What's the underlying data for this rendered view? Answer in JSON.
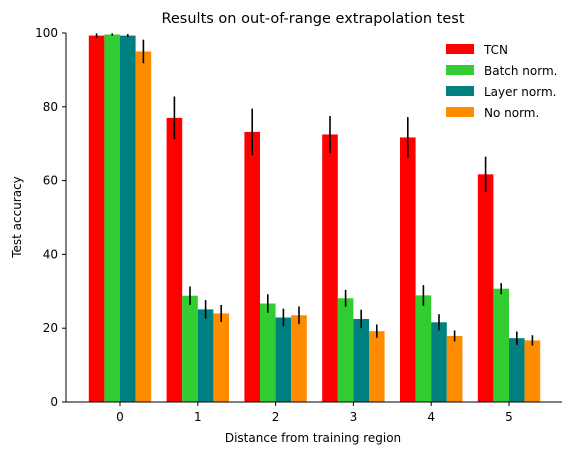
{
  "chart_data": {
    "type": "bar",
    "title": "Results on out-of-range extrapolation test",
    "xlabel": "Distance from training region",
    "ylabel": "Test accuracy",
    "categories": [
      "0",
      "1",
      "2",
      "3",
      "4",
      "5"
    ],
    "ylim": [
      0,
      100
    ],
    "yticks": [
      0,
      20,
      40,
      60,
      80,
      100
    ],
    "grid": false,
    "legend_position": "top-right",
    "series": [
      {
        "name": "TCN",
        "color": "#ff0000",
        "values": [
          99.3,
          77.0,
          73.2,
          72.5,
          71.7,
          61.7
        ],
        "errors": [
          0.6,
          5.8,
          6.3,
          5.0,
          5.5,
          4.8
        ]
      },
      {
        "name": "Batch norm.",
        "color": "#32cd32",
        "values": [
          99.6,
          28.8,
          26.7,
          28.1,
          28.9,
          30.7
        ],
        "errors": [
          0.3,
          2.5,
          2.5,
          2.3,
          2.8,
          1.5
        ]
      },
      {
        "name": "Layer norm.",
        "color": "#008080",
        "values": [
          99.3,
          25.1,
          22.9,
          22.5,
          21.6,
          17.3
        ],
        "errors": [
          0.4,
          2.5,
          2.4,
          2.5,
          2.2,
          1.8
        ]
      },
      {
        "name": "No norm.",
        "color": "#ff8c00",
        "values": [
          95.0,
          24.0,
          23.5,
          19.2,
          17.9,
          16.7
        ],
        "errors": [
          3.2,
          2.3,
          2.4,
          1.8,
          1.5,
          1.4
        ]
      }
    ]
  }
}
